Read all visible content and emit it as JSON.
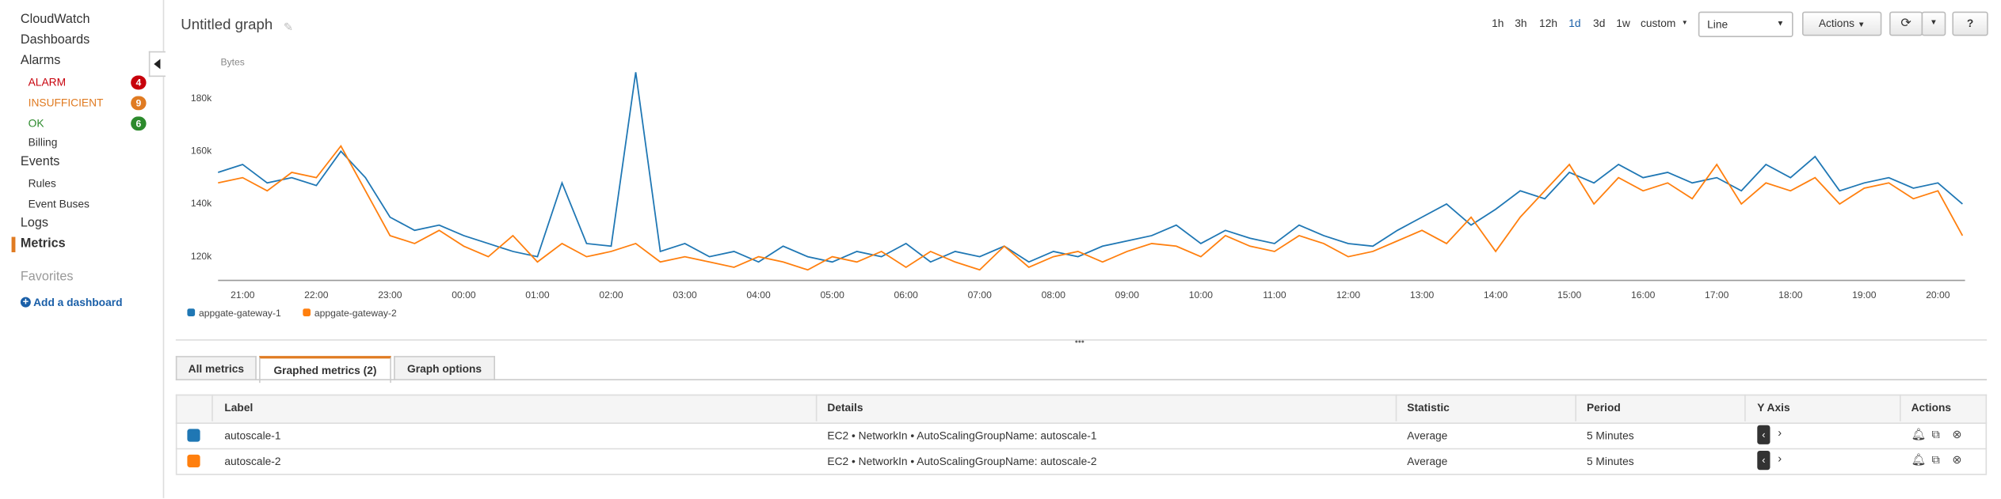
{
  "sidebar": {
    "cloudwatch": "CloudWatch",
    "dashboards": "Dashboards",
    "alarms": "Alarms",
    "alarm_states": [
      {
        "label": "ALARM",
        "count": 4
      },
      {
        "label": "INSUFFICIENT",
        "count": 9
      },
      {
        "label": "OK",
        "count": 6
      }
    ],
    "billing": "Billing",
    "events": "Events",
    "rules": "Rules",
    "event_buses": "Event Buses",
    "logs": "Logs",
    "metrics": "Metrics",
    "favorites": "Favorites",
    "add_dashboard": "Add a dashboard"
  },
  "header": {
    "title": "Untitled graph",
    "ranges": [
      "1h",
      "3h",
      "12h",
      "1d",
      "3d",
      "1w",
      "custom"
    ],
    "view": "Line",
    "actions": "Actions"
  },
  "chart_data": {
    "type": "line",
    "y_label": "Bytes",
    "categories": [
      null,
      "21:00",
      null,
      null,
      "22:00",
      null,
      null,
      "23:00",
      null,
      null,
      "00:00",
      null,
      null,
      "01:00",
      null,
      null,
      "02:00",
      null,
      null,
      "03:00",
      null,
      null,
      "04:00",
      null,
      null,
      "05:00",
      null,
      null,
      "06:00",
      null,
      null,
      "07:00",
      null,
      null,
      "08:00",
      null,
      null,
      "09:00",
      null,
      null,
      "10:00",
      null,
      null,
      "11:00",
      null,
      null,
      "12:00",
      null,
      null,
      "13:00",
      null,
      null,
      "14:00",
      null,
      null,
      "15:00",
      null,
      null,
      "16:00",
      null,
      null,
      "17:00",
      null,
      null,
      "18:00",
      null,
      null,
      "19:00",
      null,
      null,
      "20:00",
      null
    ],
    "series": [
      {
        "name": "appgate-gateway-1",
        "color": "#1f77b4",
        "values": [
          152000,
          155000,
          148000,
          150000,
          147000,
          160000,
          150000,
          135000,
          130000,
          132000,
          128000,
          125000,
          122000,
          120000,
          148000,
          125000,
          124000,
          190000,
          122000,
          125000,
          120000,
          122000,
          118000,
          124000,
          120000,
          118000,
          122000,
          120000,
          125000,
          118000,
          122000,
          120000,
          124000,
          118000,
          122000,
          120000,
          124000,
          126000,
          128000,
          132000,
          125000,
          130000,
          127000,
          125000,
          132000,
          128000,
          125000,
          124000,
          130000,
          135000,
          140000,
          132000,
          138000,
          145000,
          142000,
          152000,
          148000,
          155000,
          150000,
          152000,
          148000,
          150000,
          145000,
          155000,
          150000,
          158000,
          145000,
          148000,
          150000,
          146000,
          148000,
          140000
        ]
      },
      {
        "name": "appgate-gateway-2",
        "color": "#ff7f0e",
        "values": [
          148000,
          150000,
          145000,
          152000,
          150000,
          162000,
          145000,
          128000,
          125000,
          130000,
          124000,
          120000,
          128000,
          118000,
          125000,
          120000,
          122000,
          125000,
          118000,
          120000,
          118000,
          116000,
          120000,
          118000,
          115000,
          120000,
          118000,
          122000,
          116000,
          122000,
          118000,
          115000,
          124000,
          116000,
          120000,
          122000,
          118000,
          122000,
          125000,
          124000,
          120000,
          128000,
          124000,
          122000,
          128000,
          125000,
          120000,
          122000,
          126000,
          130000,
          125000,
          135000,
          122000,
          135000,
          145000,
          155000,
          140000,
          150000,
          145000,
          148000,
          142000,
          155000,
          140000,
          148000,
          145000,
          150000,
          140000,
          146000,
          148000,
          142000,
          145000,
          128000
        ]
      }
    ],
    "ylim": [
      111000,
      197000
    ],
    "yticks": [
      {
        "value": 120000,
        "label": "120k"
      },
      {
        "value": 140000,
        "label": "140k"
      },
      {
        "value": 160000,
        "label": "160k"
      },
      {
        "value": 180000,
        "label": "180k"
      }
    ],
    "grid": false
  },
  "tabs": [
    "All metrics",
    "Graphed metrics (2)",
    "Graph options"
  ],
  "table": {
    "columns": [
      "Label",
      "Details",
      "Statistic",
      "Period",
      "Y Axis",
      "Actions"
    ],
    "rows": [
      [
        "autoscale-1",
        "EC2 • NetworkIn • AutoScalingGroupName: autoscale-1",
        "Average",
        "5 Minutes"
      ],
      [
        "autoscale-2",
        "EC2 • NetworkIn • AutoScalingGroupName: autoscale-2",
        "Average",
        "5 Minutes"
      ]
    ]
  }
}
